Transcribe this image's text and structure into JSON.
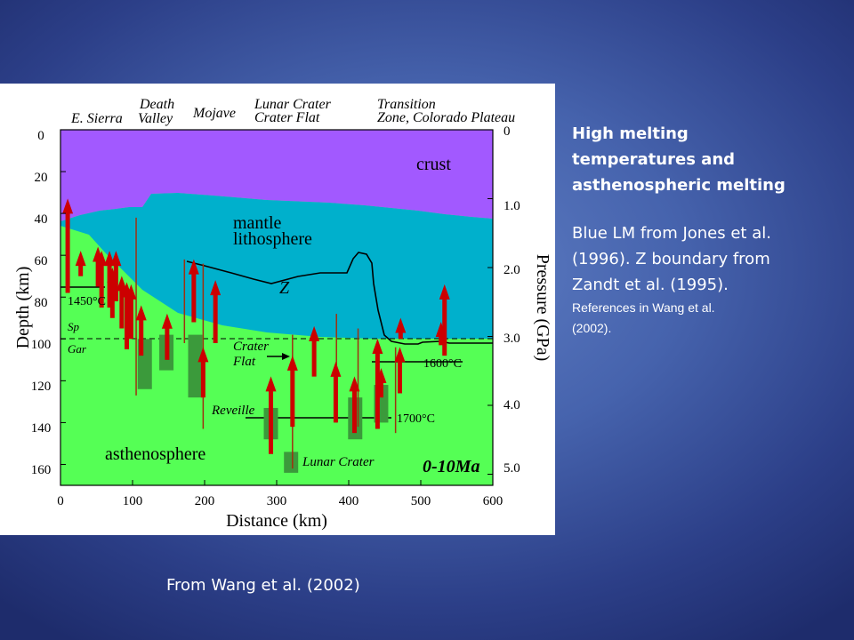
{
  "figure": {
    "region_labels": {
      "e_sierra": "E. Sierra",
      "death": "Death",
      "valley": "Valley",
      "mojave": "Mojave",
      "lunar_crater": "Lunar Crater",
      "crater_flat": "Crater Flat",
      "transition": "Transition",
      "zone_colorado": "Zone, Colorado Plateau"
    },
    "y_axis_left": {
      "label": "Depth (km)",
      "ticks": [
        "0",
        "20",
        "40",
        "60",
        "80",
        "100",
        "120",
        "140",
        "160"
      ]
    },
    "y_axis_right": {
      "label": "Pressure (GPa)",
      "ticks": [
        "0",
        "1.0",
        "2.0",
        "3.0",
        "4.0",
        "5.0"
      ]
    },
    "x_axis": {
      "label": "Distance (km)",
      "ticks": [
        "0",
        "100",
        "200",
        "300",
        "400",
        "500",
        "600"
      ]
    },
    "layers": {
      "crust": "crust",
      "mantle_1": "mantle",
      "mantle_2": "lithosphere",
      "asthenosphere": "asthenosphere"
    },
    "annotations": {
      "z_boundary": "Z",
      "temp_1450": "1450°C",
      "temp_1600": "1600°C",
      "temp_1700": "1700°C",
      "sp": "Sp",
      "gar": "Gar",
      "crater_flat_1": "Crater",
      "crater_flat_2": "Flat",
      "reveille": "Reveille",
      "lunar_crater_bottom": "Lunar Crater",
      "age": "0-10Ma"
    },
    "colors": {
      "crust": "#a259ff",
      "mantle_lithosphere": "#00b0cc",
      "asthenosphere": "#55ff55",
      "arrow": "#cc0000",
      "arrow_line": "#a03010",
      "block": "#3b9a3b"
    },
    "arrows": [
      {
        "km": 10,
        "from": 78,
        "to": 35
      },
      {
        "km": 28,
        "from": 70,
        "to": 60
      },
      {
        "km": 52,
        "from": 75,
        "to": 58
      },
      {
        "km": 57,
        "from": 85,
        "to": 60
      },
      {
        "km": 68,
        "from": 85,
        "to": 60
      },
      {
        "km": 72,
        "from": 90,
        "to": 68
      },
      {
        "km": 77,
        "from": 82,
        "to": 60
      },
      {
        "km": 85,
        "from": 95,
        "to": 72
      },
      {
        "km": 92,
        "from": 105,
        "to": 75
      },
      {
        "km": 98,
        "from": 100,
        "to": 76
      },
      {
        "km": 112,
        "from": 108,
        "to": 86
      },
      {
        "km": 148,
        "from": 110,
        "to": 90
      },
      {
        "km": 185,
        "from": 92,
        "to": 64
      },
      {
        "km": 198,
        "from": 128,
        "to": 106
      },
      {
        "km": 215,
        "from": 102,
        "to": 74
      },
      {
        "km": 292,
        "from": 155,
        "to": 120
      },
      {
        "km": 322,
        "from": 142,
        "to": 110
      },
      {
        "km": 352,
        "from": 118,
        "to": 96
      },
      {
        "km": 382,
        "from": 140,
        "to": 113
      },
      {
        "km": 408,
        "from": 145,
        "to": 120
      },
      {
        "km": 440,
        "from": 143,
        "to": 102
      },
      {
        "km": 445,
        "from": 128,
        "to": 116
      },
      {
        "km": 471,
        "from": 126,
        "to": 106
      },
      {
        "km": 472,
        "from": 100,
        "to": 92
      },
      {
        "km": 528,
        "from": 103,
        "to": 94
      },
      {
        "km": 533,
        "from": 108,
        "to": 76
      }
    ],
    "lines": [
      {
        "km": 105,
        "top": 42,
        "bottom": 127
      },
      {
        "km": 172,
        "top": 62,
        "bottom": 102
      },
      {
        "km": 198,
        "top": 64,
        "bottom": 143
      },
      {
        "km": 292,
        "top": 130,
        "bottom": 154
      },
      {
        "km": 322,
        "top": 98,
        "bottom": 162
      },
      {
        "km": 383,
        "top": 88,
        "bottom": 140
      },
      {
        "km": 413,
        "top": 95,
        "bottom": 142
      },
      {
        "km": 465,
        "top": 104,
        "bottom": 145
      }
    ],
    "blocks": [
      {
        "km": 117,
        "top": 100,
        "bottom": 124
      },
      {
        "km": 147,
        "top": 98,
        "bottom": 115
      },
      {
        "km": 187,
        "top": 98,
        "bottom": 128
      },
      {
        "km": 292,
        "top": 133,
        "bottom": 148
      },
      {
        "km": 409,
        "top": 128,
        "bottom": 148
      },
      {
        "km": 445,
        "top": 122,
        "bottom": 140
      },
      {
        "km": 320,
        "top": 154,
        "bottom": 164
      }
    ]
  },
  "side_text": {
    "heading_lines": [
      "High melting",
      "temperatures and",
      "asthenospheric melting"
    ],
    "body_lines": [
      "Blue LM from Jones et al.",
      "(1996). Z boundary from",
      "Zandt et al. (1995)."
    ],
    "refs_lines": [
      "References in Wang et al.",
      "(2002)."
    ]
  },
  "caption": "From Wang et al. (2002)"
}
